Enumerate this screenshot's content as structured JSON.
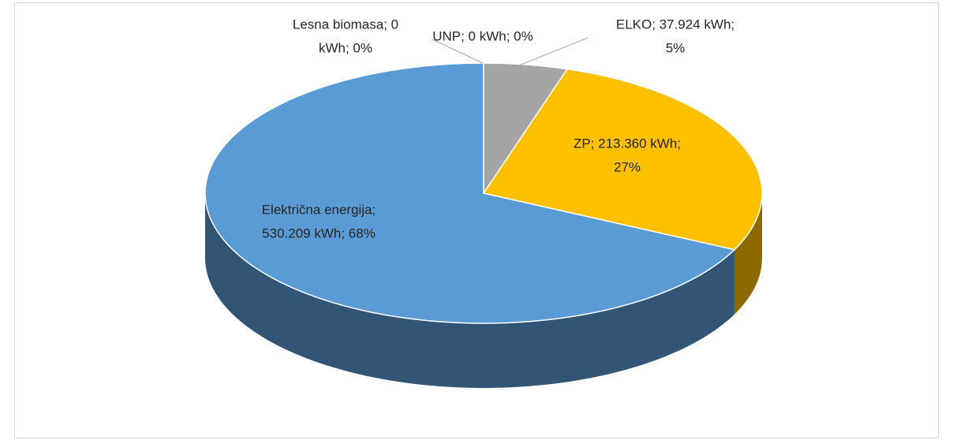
{
  "chart_data": {
    "type": "pie3d",
    "categories": [
      "Lesna biomasa",
      "UNP",
      "ELKO",
      "ZP",
      "Električna energija"
    ],
    "values": [
      0,
      0,
      37924,
      213360,
      530209
    ],
    "value_labels": [
      [
        "Lesna biomasa; 0",
        "kWh; 0%"
      ],
      [
        "UNP; 0 kWh; 0%"
      ],
      [
        "ELKO; 37.924 kWh;",
        "5%"
      ],
      [
        "ZP; 213.360 kWh;",
        "27%"
      ],
      [
        "Električna energija;",
        "530.209 kWh; 68%"
      ]
    ],
    "colors": [
      "#70ad47",
      "#4472c4",
      "#a5a5a5",
      "#ffc000",
      "#5b9bd5"
    ]
  }
}
